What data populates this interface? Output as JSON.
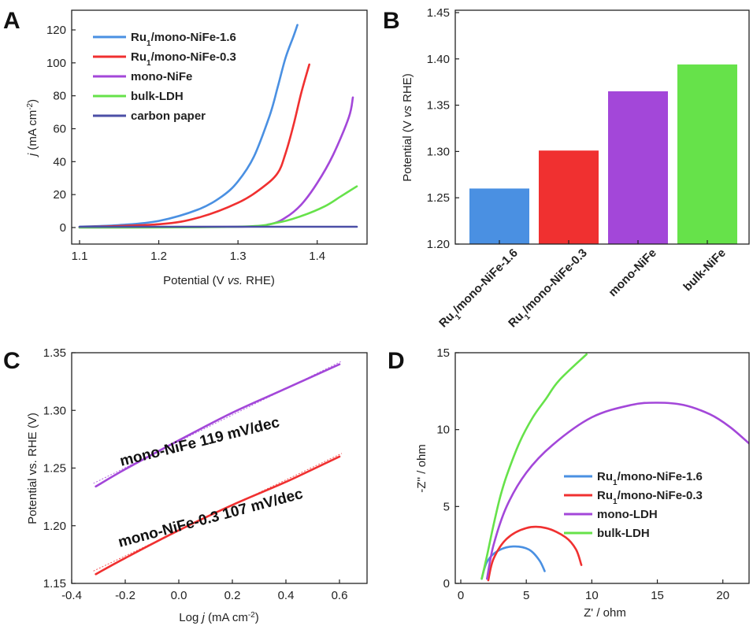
{
  "chart_data": [
    {
      "panel": "A",
      "type": "line",
      "xlabel": "Potential (V vs. RHE)",
      "ylabel": "j (mA cm-2)",
      "xlim": [
        1.1,
        1.45
      ],
      "ylim": [
        -10,
        128
      ],
      "xticks": [
        "1.1",
        "1.2",
        "1.3",
        "1.4"
      ],
      "yticks": [
        "0",
        "20",
        "40",
        "60",
        "80",
        "100",
        "120"
      ],
      "legend_position": "top-left",
      "series": [
        {
          "name": "Ru1/mono-NiFe-1.6",
          "color": "#4a90e2",
          "x": [
            1.1,
            1.15,
            1.2,
            1.25,
            1.28,
            1.3,
            1.32,
            1.34,
            1.35,
            1.36,
            1.37,
            1.375
          ],
          "y": [
            0.5,
            1.5,
            4,
            11,
            19,
            28,
            43,
            68,
            85,
            103,
            116,
            123
          ]
        },
        {
          "name": "Ru1/mono-NiFe-0.3",
          "color": "#f03030",
          "x": [
            1.1,
            1.2,
            1.25,
            1.3,
            1.33,
            1.35,
            1.36,
            1.37,
            1.38,
            1.39
          ],
          "y": [
            0.3,
            2,
            6,
            15,
            24,
            33,
            45,
            62,
            82,
            99
          ]
        },
        {
          "name": "mono-NiFe",
          "color": "#a347d9",
          "x": [
            1.1,
            1.3,
            1.34,
            1.36,
            1.38,
            1.4,
            1.42,
            1.44,
            1.445
          ],
          "y": [
            0,
            0.5,
            2,
            6,
            14,
            27,
            44,
            67,
            79
          ]
        },
        {
          "name": "bulk-LDH",
          "color": "#66e24a",
          "x": [
            1.1,
            1.3,
            1.35,
            1.38,
            1.41,
            1.43,
            1.45
          ],
          "y": [
            0,
            0.5,
            3,
            7,
            13,
            19,
            25
          ]
        },
        {
          "name": "carbon paper",
          "color": "#4b4fa6",
          "x": [
            1.1,
            1.45
          ],
          "y": [
            0.5,
            0.5
          ]
        }
      ]
    },
    {
      "panel": "B",
      "type": "bar",
      "ylabel": "Potential (V vs RHE)",
      "ylim": [
        1.2,
        1.45
      ],
      "yticks": [
        "1.20",
        "1.25",
        "1.30",
        "1.35",
        "1.40",
        "1.45"
      ],
      "categories": [
        "Ru1/mono-NiFe-1.6",
        "Ru1/mono-NiFe-0.3",
        "mono-NiFe",
        "bulk-NiFe"
      ],
      "values": [
        1.26,
        1.301,
        1.365,
        1.394
      ],
      "colors": [
        "#4a90e2",
        "#f03030",
        "#a347d9",
        "#66e24a"
      ]
    },
    {
      "panel": "C",
      "type": "line",
      "xlabel": "Log j (mA cm-2)",
      "ylabel": "Potential vs. RHE (V)",
      "xlim": [
        -0.4,
        0.7
      ],
      "ylim": [
        1.15,
        1.35
      ],
      "xticks": [
        "-0.4",
        "-0.2",
        "0.0",
        "0.2",
        "0.4",
        "0.6"
      ],
      "yticks": [
        "1.15",
        "1.20",
        "1.25",
        "1.30",
        "1.35"
      ],
      "annotations": [
        "mono-NiFe   119 mV/dec",
        "mono-NiFe-0.3   107 mV/dec"
      ],
      "series": [
        {
          "name": "mono-NiFe",
          "color": "#a347d9",
          "x": [
            -0.31,
            -0.2,
            0.0,
            0.2,
            0.4,
            0.6
          ],
          "y": [
            1.234,
            1.249,
            1.274,
            1.298,
            1.319,
            1.34
          ]
        },
        {
          "name": "mono-NiFe-0.3",
          "color": "#f03030",
          "x": [
            -0.31,
            -0.2,
            0.0,
            0.2,
            0.4,
            0.6
          ],
          "y": [
            1.158,
            1.172,
            1.196,
            1.218,
            1.238,
            1.26
          ]
        }
      ]
    },
    {
      "panel": "D",
      "type": "line",
      "xlabel": "Z' / ohm",
      "ylabel": "-Z'' / ohm",
      "xlim": [
        0,
        22
      ],
      "ylim": [
        0,
        15
      ],
      "xticks": [
        "0",
        "5",
        "10",
        "15",
        "20"
      ],
      "yticks": [
        "0",
        "5",
        "10",
        "15"
      ],
      "legend_position": "center-right",
      "series": [
        {
          "name": "Ru1/mono-NiFe-1.6",
          "color": "#4a90e2",
          "x": [
            1.6,
            2.0,
            2.8,
            4.0,
            5.2,
            6.0,
            6.4
          ],
          "y": [
            0.3,
            1.4,
            2.1,
            2.4,
            2.2,
            1.5,
            0.8
          ]
        },
        {
          "name": "Ru1/mono-NiFe-0.3",
          "color": "#f03030",
          "x": [
            2.1,
            2.5,
            3.5,
            5.0,
            6.5,
            8.0,
            8.8,
            9.2
          ],
          "y": [
            0.2,
            1.6,
            2.9,
            3.6,
            3.6,
            3.0,
            2.2,
            1.2
          ]
        },
        {
          "name": "mono-LDH",
          "color": "#a347d9",
          "x": [
            2.0,
            2.5,
            3.5,
            5.0,
            7.0,
            10.0,
            13.0,
            15.0,
            17.0,
            19.0,
            20.5,
            22.0
          ],
          "y": [
            0.3,
            2.5,
            5.0,
            7.2,
            9.0,
            10.8,
            11.6,
            11.75,
            11.6,
            11.0,
            10.2,
            9.1
          ]
        },
        {
          "name": "bulk-LDH",
          "color": "#66e24a",
          "x": [
            1.6,
            2.0,
            2.5,
            3.0,
            3.5,
            4.5,
            5.5,
            6.5,
            7.5,
            9.6
          ],
          "y": [
            0.3,
            1.8,
            3.8,
            5.6,
            7.0,
            9.2,
            10.8,
            12.0,
            13.2,
            14.9
          ]
        }
      ]
    }
  ],
  "panels": {
    "A": {
      "label": "A",
      "ylabel_parts": {
        "main": "j",
        "rest": " (mA cm",
        "sup": "-2",
        "close": ")"
      },
      "xlabel_parts": {
        "a": "Potential (V ",
        "b": "vs.",
        "c": " RHE)"
      },
      "legend": [
        {
          "main": "Ru",
          "sub": "1",
          "rest": "/mono-NiFe-1.6"
        },
        {
          "main": "Ru",
          "sub": "1",
          "rest": "/mono-NiFe-0.3"
        },
        {
          "main": "mono-NiFe",
          "sub": "",
          "rest": ""
        },
        {
          "main": "bulk-LDH",
          "sub": "",
          "rest": ""
        },
        {
          "main": "carbon paper",
          "sub": "",
          "rest": ""
        }
      ]
    },
    "B": {
      "label": "B",
      "ylabel_parts": {
        "a": "Potential (V ",
        "b": "vs",
        "c": " RHE)"
      },
      "cat_parts": [
        {
          "main": "Ru",
          "sub": "1",
          "rest": "/mono-NiFe-1.6"
        },
        {
          "main": "Ru",
          "sub": "1",
          "rest": "/mono-NiFe-0.3"
        },
        {
          "main": "mono-NiFe",
          "sub": "",
          "rest": ""
        },
        {
          "main": "bulk-NiFe",
          "sub": "",
          "rest": ""
        }
      ]
    },
    "C": {
      "label": "C",
      "xlabel_parts": {
        "a": "Log ",
        "b": "j",
        "c": " (mA cm",
        "sup": "-2",
        "d": ")"
      }
    },
    "D": {
      "label": "D",
      "legend": [
        {
          "main": "Ru",
          "sub": "1",
          "rest": "/mono-NiFe-1.6"
        },
        {
          "main": "Ru",
          "sub": "1",
          "rest": "/mono-NiFe-0.3"
        },
        {
          "main": "mono-LDH",
          "sub": "",
          "rest": ""
        },
        {
          "main": "bulk-LDH",
          "sub": "",
          "rest": ""
        }
      ]
    }
  }
}
